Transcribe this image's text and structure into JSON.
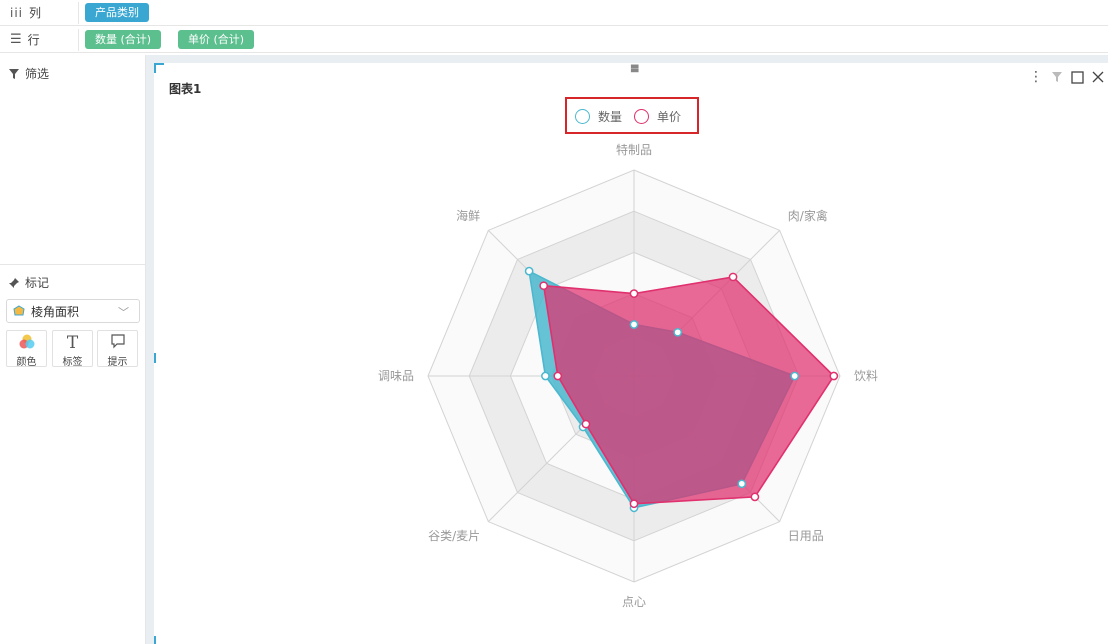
{
  "shelves": {
    "columns": {
      "label": "列",
      "pills": [
        "产品类别"
      ]
    },
    "rows": {
      "label": "行",
      "pills": [
        "数量 (合计)",
        "单价 (合计)"
      ]
    }
  },
  "left_panel": {
    "filter_title": "筛选",
    "marks_title": "标记",
    "mark_type": "棱角面积",
    "mark_buttons": [
      {
        "label": "颜色",
        "icon": "color-icon"
      },
      {
        "label": "标签",
        "icon": "text-icon"
      },
      {
        "label": "提示",
        "icon": "tooltip-icon"
      }
    ]
  },
  "card": {
    "title": "图表1"
  },
  "colors": {
    "series1": "#4bb8cf",
    "series2": "#e0306e"
  },
  "chart_data": {
    "type": "radar",
    "title": "",
    "categories": [
      "特制品",
      "肉/家禽",
      "饮料",
      "日用品",
      "点心",
      "谷类/麦片",
      "调味品",
      "海鲜"
    ],
    "max": 1.0,
    "rings": 5,
    "legend_position": "top-center",
    "series": [
      {
        "name": "数量",
        "color": "#4bb8cf",
        "values": [
          0.25,
          0.3,
          0.78,
          0.74,
          0.64,
          0.35,
          0.43,
          0.72
        ]
      },
      {
        "name": "单价",
        "color": "#e0306e",
        "values": [
          0.4,
          0.68,
          0.97,
          0.83,
          0.62,
          0.33,
          0.37,
          0.62
        ]
      }
    ]
  }
}
